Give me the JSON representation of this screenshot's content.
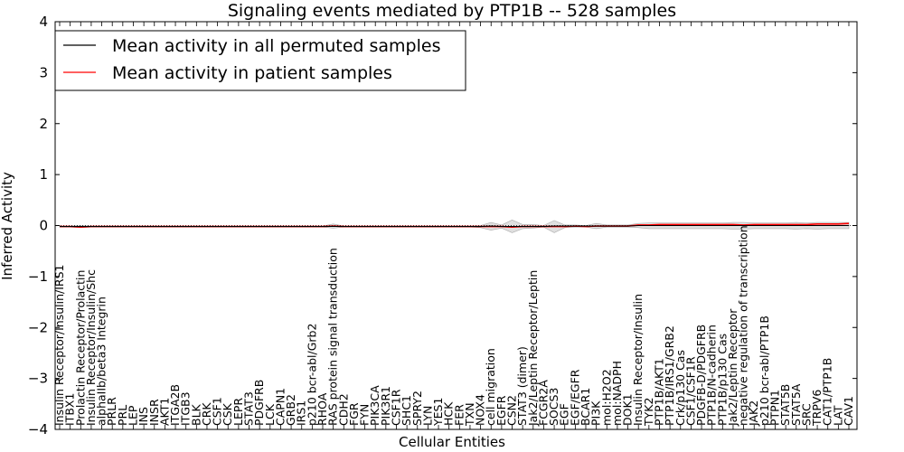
{
  "chart_data": {
    "type": "line",
    "title": "Signaling events mediated by PTP1B -- 528 samples",
    "xlabel": "Cellular Entities",
    "ylabel": "Inferred Activity",
    "ylim": [
      -4,
      4
    ],
    "yticks": [
      -4,
      -3,
      -2,
      -1,
      0,
      1,
      2,
      3,
      4
    ],
    "grid": false,
    "legend_position": "top-left",
    "categories": [
      "Insulin Receptor/Insulin/IRS1",
      "ITBX1",
      "Prolactin Receptor/Prolactin",
      "Insulin Receptor/Insulin/Shc",
      "alphaIIb/beta3 Integrin",
      "PRLR",
      "PRL",
      "LEP",
      "INS",
      "INSR",
      "AKT1",
      "ITGA2B",
      "ITGB3",
      "BLK",
      "CRK",
      "CSF1",
      "CSK",
      "LEPR",
      "STAT3",
      "PDGFRB",
      "LCK",
      "CAPN1",
      "GRB2",
      "IRS1",
      "p210 bcr-abl/Grb2",
      "RHOA",
      "RAS protein signal transduction",
      "CDH2",
      "FGR",
      "FYN",
      "PIK3CA",
      "PIK3R1",
      "CSF1R",
      "SHC1",
      "SPRY2",
      "LYN",
      "YES1",
      "HCK",
      "FER",
      "TXN",
      "NOX4",
      "cell migration",
      "EGFR",
      "CSN2",
      "STAT3 (dimer)",
      "Jak2/Leptin Receptor/Leptin",
      "FCGR2A",
      "SOCS3",
      "EGF",
      "EGF/EGFR",
      "BCAR1",
      "PI3K",
      "mol:H2O2",
      "mol:NADPH",
      "DOK1",
      "Insulin Receptor/Insulin",
      "TYK2",
      "PTP1B/AKT1",
      "PTP1B/IRS1/GRB2",
      "Crk/p130 Cas",
      "CSF1/CSF1R",
      "PDGFB-D/PDGFRB",
      "PTP1B/N-cadherin",
      "PTP1B/p130 Cas",
      "Jak2/Leptin Receptor",
      "negative regulation of transcription",
      "JAK2",
      "p210 bcr-abl/PTP1B",
      "PTPN1",
      "STAT5B",
      "STAT5A",
      "SRC",
      "TRPV6",
      "CAT1/PTP1B",
      "LAT",
      "CAV1"
    ],
    "series": [
      {
        "name": "Mean activity in all permuted samples",
        "color": "#000000",
        "values": [
          -0.02,
          -0.02,
          -0.02,
          -0.02,
          -0.02,
          -0.02,
          -0.02,
          -0.02,
          -0.02,
          -0.02,
          -0.02,
          -0.02,
          -0.02,
          -0.02,
          -0.02,
          -0.02,
          -0.02,
          -0.02,
          -0.02,
          -0.02,
          -0.02,
          -0.02,
          -0.02,
          -0.02,
          -0.02,
          -0.02,
          -0.015,
          -0.02,
          -0.02,
          -0.02,
          -0.02,
          -0.02,
          -0.02,
          -0.02,
          -0.02,
          -0.02,
          -0.02,
          -0.02,
          -0.02,
          -0.02,
          -0.02,
          -0.01,
          -0.02,
          -0.02,
          -0.02,
          -0.02,
          -0.02,
          -0.01,
          -0.01,
          -0.01,
          -0.01,
          -0.01,
          -0.01,
          -0.01,
          -0.01,
          0.0,
          0.0,
          0.0,
          0.0,
          0.0,
          0.0,
          0.0,
          0.0,
          0.0,
          0.0,
          0.0,
          0.0,
          0.0,
          0.0,
          0.0,
          0.0,
          0.0,
          0.0,
          0.0,
          0.0,
          0.0
        ]
      },
      {
        "name": "Mean activity in patient samples",
        "color": "#ff0000",
        "values": [
          -0.02,
          -0.02,
          -0.03,
          -0.02,
          -0.02,
          -0.02,
          -0.02,
          -0.02,
          -0.02,
          -0.02,
          -0.02,
          -0.02,
          -0.02,
          -0.02,
          -0.02,
          -0.02,
          -0.02,
          -0.02,
          -0.02,
          -0.02,
          -0.02,
          -0.02,
          -0.02,
          -0.02,
          -0.02,
          -0.02,
          -0.01,
          -0.02,
          -0.02,
          -0.02,
          -0.02,
          -0.02,
          -0.02,
          -0.02,
          -0.02,
          -0.02,
          -0.02,
          -0.02,
          -0.02,
          -0.02,
          -0.02,
          -0.02,
          -0.02,
          -0.03,
          -0.02,
          -0.02,
          -0.02,
          -0.02,
          -0.02,
          -0.01,
          -0.02,
          -0.01,
          -0.01,
          -0.01,
          -0.01,
          0.01,
          0.01,
          0.02,
          0.02,
          0.02,
          0.02,
          0.02,
          0.02,
          0.02,
          0.02,
          0.01,
          0.02,
          0.02,
          0.02,
          0.02,
          0.02,
          0.02,
          0.03,
          0.03,
          0.03,
          0.04
        ]
      }
    ],
    "band": {
      "lower": [
        -0.03,
        -0.03,
        -0.04,
        -0.03,
        -0.03,
        -0.03,
        -0.03,
        -0.03,
        -0.03,
        -0.03,
        -0.03,
        -0.03,
        -0.03,
        -0.03,
        -0.03,
        -0.03,
        -0.03,
        -0.03,
        -0.03,
        -0.03,
        -0.03,
        -0.03,
        -0.03,
        -0.03,
        -0.03,
        -0.03,
        -0.05,
        -0.03,
        -0.03,
        -0.03,
        -0.03,
        -0.03,
        -0.03,
        -0.03,
        -0.03,
        -0.03,
        -0.03,
        -0.03,
        -0.03,
        -0.03,
        -0.04,
        -0.09,
        -0.05,
        -0.14,
        -0.06,
        -0.05,
        -0.03,
        -0.14,
        -0.04,
        -0.03,
        -0.03,
        -0.06,
        -0.03,
        -0.03,
        -0.03,
        -0.04,
        -0.06,
        -0.06,
        -0.06,
        -0.06,
        -0.06,
        -0.06,
        -0.06,
        -0.06,
        -0.07,
        -0.07,
        -0.06,
        -0.06,
        -0.06,
        -0.06,
        -0.07,
        -0.06,
        -0.07,
        -0.06,
        -0.06,
        -0.06
      ],
      "upper": [
        -0.01,
        -0.01,
        0.0,
        -0.01,
        -0.01,
        -0.01,
        -0.01,
        -0.01,
        -0.01,
        -0.01,
        -0.01,
        -0.01,
        -0.01,
        -0.01,
        -0.01,
        -0.01,
        -0.01,
        -0.01,
        -0.01,
        -0.01,
        -0.01,
        -0.01,
        -0.01,
        -0.01,
        -0.01,
        -0.01,
        0.03,
        -0.01,
        -0.01,
        -0.01,
        -0.01,
        -0.01,
        -0.01,
        -0.01,
        -0.01,
        -0.01,
        -0.01,
        -0.01,
        -0.01,
        -0.01,
        0.0,
        0.06,
        0.01,
        0.11,
        0.02,
        0.02,
        0.0,
        0.1,
        0.01,
        0.01,
        0.0,
        0.04,
        0.01,
        0.01,
        0.01,
        0.04,
        0.05,
        0.05,
        0.05,
        0.05,
        0.05,
        0.05,
        0.05,
        0.05,
        0.06,
        0.06,
        0.05,
        0.05,
        0.05,
        0.05,
        0.06,
        0.05,
        0.06,
        0.06,
        0.06,
        0.06
      ]
    }
  }
}
